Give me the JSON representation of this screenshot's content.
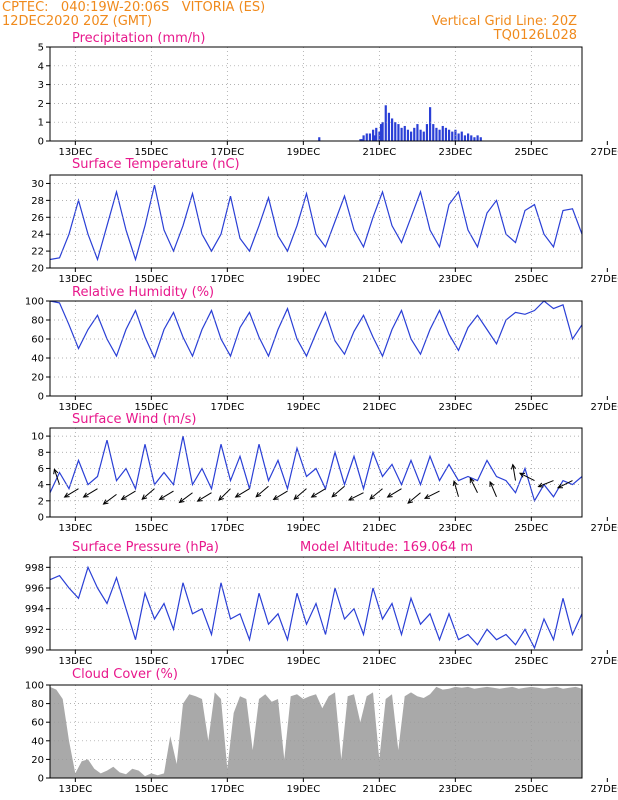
{
  "header": {
    "line1": "CPTEC:   040:19W-20:06S   VITORIA (ES)",
    "line2": "12DEC2020 20Z (GMT)",
    "right1": "Vertical Grid Line: 20Z",
    "right2": "TQ0126L028"
  },
  "x_ticks": [
    "13DEC",
    "15DEC",
    "17DEC",
    "19DEC",
    "21DEC",
    "23DEC",
    "25DEC",
    "27DEC"
  ],
  "colors": {
    "line": "#2a3fd6",
    "bar": "#2a3fd6",
    "cloud": "#a9a9a9",
    "title": "#e8188c",
    "header": "#f08a1c"
  },
  "panels": {
    "precipitation": {
      "title": "Precipitation (mm/h)"
    },
    "temperature": {
      "title": "Surface Temperature (nC)"
    },
    "humidity": {
      "title": "Relative Humidity (%)"
    },
    "wind": {
      "title": "Surface Wind (m/s)"
    },
    "pressure": {
      "title": "Surface Pressure (hPa)",
      "extra": "Model Altitude: 169.064 m"
    },
    "cloud": {
      "title": "Cloud Cover (%)"
    }
  },
  "chart_data": [
    {
      "type": "bar",
      "title": "Precipitation (mm/h)",
      "ylim": [
        0,
        5
      ],
      "yticks": [
        0,
        1,
        2,
        3,
        4,
        5
      ],
      "x_unit": "hours since 12DEC2020 20Z",
      "x": [
        170,
        196,
        197,
        198,
        200,
        202,
        204,
        205,
        206,
        208,
        209,
        210,
        212,
        214,
        216,
        218,
        220,
        222,
        224,
        226,
        228,
        230,
        232,
        234,
        236,
        238,
        240,
        242,
        244,
        246,
        248,
        250,
        252,
        254,
        256,
        258,
        260,
        262,
        264,
        266,
        268,
        270,
        272
      ],
      "values": [
        0.2,
        0.1,
        0.1,
        0.3,
        0.4,
        0.4,
        0.6,
        0.3,
        0.7,
        0.5,
        0.9,
        1.0,
        1.9,
        1.5,
        1.2,
        1.0,
        0.9,
        0.7,
        0.8,
        0.6,
        0.5,
        0.7,
        0.9,
        0.6,
        0.5,
        0.9,
        1.8,
        0.9,
        0.7,
        0.6,
        0.8,
        0.7,
        0.6,
        0.5,
        0.6,
        0.4,
        0.5,
        0.3,
        0.4,
        0.3,
        0.2,
        0.3,
        0.2
      ]
    },
    {
      "type": "line",
      "title": "Surface Temperature (nC)",
      "ylim": [
        20,
        31
      ],
      "yticks": [
        20,
        22,
        24,
        26,
        28,
        30
      ],
      "x_unit": "hours since 12DEC2020 20Z",
      "x": [
        0,
        6,
        12,
        18,
        24,
        30,
        36,
        42,
        48,
        54,
        60,
        66,
        72,
        78,
        84,
        90,
        96,
        102,
        108,
        114,
        120,
        126,
        132,
        138,
        144,
        150,
        156,
        162,
        168,
        174,
        180,
        186,
        192,
        198,
        204,
        210,
        216,
        222,
        228,
        234,
        240,
        246,
        252,
        258,
        264,
        270,
        276,
        282,
        288,
        294,
        300,
        306,
        312,
        318,
        324,
        330,
        336
      ],
      "values": [
        21.0,
        21.2,
        24.0,
        28.0,
        24.0,
        21.0,
        25.0,
        29.0,
        24.5,
        21.0,
        25.0,
        29.8,
        24.5,
        22.0,
        25.0,
        28.8,
        24.0,
        22.0,
        24.0,
        28.5,
        23.5,
        22.0,
        25.0,
        28.3,
        23.8,
        22.0,
        25.0,
        28.8,
        24.0,
        22.5,
        25.5,
        28.5,
        24.5,
        22.5,
        26.0,
        29.0,
        25.0,
        23.0,
        26.0,
        29.0,
        24.5,
        22.5,
        27.5,
        29.0,
        24.5,
        22.5,
        26.5,
        28.0,
        24.0,
        23.0,
        26.8,
        27.5,
        24.0,
        22.5,
        26.8,
        27.0,
        24.0
      ]
    },
    {
      "type": "line",
      "title": "Relative Humidity (%)",
      "ylim": [
        0,
        100
      ],
      "yticks": [
        0,
        20,
        40,
        60,
        80,
        100
      ],
      "x_unit": "hours since 12DEC2020 20Z",
      "x": [
        0,
        6,
        12,
        18,
        24,
        30,
        36,
        42,
        48,
        54,
        60,
        66,
        72,
        78,
        84,
        90,
        96,
        102,
        108,
        114,
        120,
        126,
        132,
        138,
        144,
        150,
        156,
        162,
        168,
        174,
        180,
        186,
        192,
        198,
        204,
        210,
        216,
        222,
        228,
        234,
        240,
        246,
        252,
        258,
        264,
        270,
        276,
        282,
        288,
        294,
        300,
        306,
        312,
        318,
        324,
        330,
        336
      ],
      "values": [
        100,
        98,
        75,
        50,
        70,
        85,
        60,
        42,
        70,
        90,
        62,
        40,
        70,
        88,
        62,
        42,
        70,
        90,
        60,
        42,
        72,
        88,
        62,
        42,
        70,
        92,
        60,
        42,
        66,
        88,
        58,
        44,
        68,
        85,
        62,
        42,
        70,
        90,
        60,
        44,
        70,
        90,
        65,
        48,
        72,
        85,
        70,
        55,
        80,
        88,
        86,
        90,
        100,
        92,
        96,
        60,
        75
      ]
    },
    {
      "type": "line",
      "title": "Surface Wind (m/s)",
      "ylim": [
        0,
        11
      ],
      "yticks": [
        0,
        2,
        4,
        6,
        8,
        10
      ],
      "x_unit": "hours since 12DEC2020 20Z",
      "x": [
        0,
        6,
        12,
        18,
        24,
        30,
        36,
        42,
        48,
        54,
        60,
        66,
        72,
        78,
        84,
        90,
        96,
        102,
        108,
        114,
        120,
        126,
        132,
        138,
        144,
        150,
        156,
        162,
        168,
        174,
        180,
        186,
        192,
        198,
        204,
        210,
        216,
        222,
        228,
        234,
        240,
        246,
        252,
        258,
        264,
        270,
        276,
        282,
        288,
        294,
        300,
        306,
        312,
        318,
        324,
        330,
        336
      ],
      "values": [
        3.0,
        5.5,
        3.5,
        7.0,
        4.0,
        5.0,
        9.5,
        4.5,
        6.0,
        3.5,
        9.0,
        4.0,
        5.5,
        4.0,
        10.0,
        4.0,
        6.0,
        3.5,
        9.0,
        4.5,
        7.5,
        3.5,
        9.0,
        4.5,
        7.0,
        3.5,
        8.5,
        5.0,
        6.0,
        3.5,
        8.0,
        4.0,
        7.5,
        3.5,
        8.0,
        5.0,
        6.5,
        4.0,
        7.0,
        4.0,
        7.5,
        4.5,
        6.5,
        4.5,
        5.0,
        4.5,
        7.0,
        5.0,
        4.5,
        3.0,
        6.0,
        2.0,
        4.0,
        2.5,
        4.5,
        4.0,
        5.0
      ]
    },
    {
      "type": "line",
      "title": "Surface Pressure (hPa)",
      "ylim": [
        990,
        999
      ],
      "yticks": [
        990,
        992,
        994,
        996,
        998
      ],
      "x_unit": "hours since 12DEC2020 20Z",
      "x": [
        0,
        6,
        12,
        18,
        24,
        30,
        36,
        42,
        48,
        54,
        60,
        66,
        72,
        78,
        84,
        90,
        96,
        102,
        108,
        114,
        120,
        126,
        132,
        138,
        144,
        150,
        156,
        162,
        168,
        174,
        180,
        186,
        192,
        198,
        204,
        210,
        216,
        222,
        228,
        234,
        240,
        246,
        252,
        258,
        264,
        270,
        276,
        282,
        288,
        294,
        300,
        306,
        312,
        318,
        324,
        330,
        336
      ],
      "values": [
        996.8,
        997.2,
        996.0,
        995.0,
        998.0,
        996.0,
        994.5,
        997.0,
        994.0,
        991.0,
        995.5,
        993.0,
        994.5,
        992.0,
        996.5,
        993.5,
        994.0,
        991.5,
        996.5,
        993.0,
        993.5,
        991.0,
        995.5,
        992.5,
        993.5,
        991.0,
        995.5,
        992.5,
        994.5,
        991.5,
        996.0,
        993.0,
        994.0,
        991.5,
        996.0,
        993.0,
        994.5,
        991.5,
        995.0,
        992.5,
        993.5,
        991.0,
        993.5,
        991.0,
        991.5,
        990.5,
        992.0,
        991.0,
        991.5,
        990.5,
        992.0,
        990.2,
        993.0,
        991.0,
        995.0,
        991.5,
        993.5
      ]
    },
    {
      "type": "area",
      "title": "Cloud Cover (%)",
      "ylim": [
        0,
        100
      ],
      "yticks": [
        0,
        20,
        40,
        60,
        80,
        100
      ],
      "x_unit": "hours since 12DEC2020 20Z",
      "x": [
        0,
        4,
        8,
        12,
        16,
        20,
        24,
        28,
        32,
        36,
        40,
        44,
        48,
        52,
        56,
        60,
        64,
        68,
        72,
        76,
        80,
        84,
        88,
        92,
        96,
        100,
        104,
        108,
        112,
        116,
        120,
        124,
        128,
        132,
        136,
        140,
        144,
        148,
        152,
        156,
        160,
        164,
        168,
        172,
        176,
        180,
        184,
        188,
        192,
        196,
        200,
        204,
        208,
        212,
        216,
        220,
        224,
        228,
        232,
        236,
        240,
        244,
        248,
        252,
        256,
        260,
        264,
        268,
        272,
        276,
        280,
        284,
        288,
        292,
        296,
        300,
        304,
        308,
        312,
        316,
        320,
        324,
        328,
        332,
        336
      ],
      "values": [
        98,
        95,
        85,
        40,
        5,
        18,
        20,
        10,
        5,
        8,
        12,
        6,
        4,
        10,
        8,
        2,
        5,
        3,
        5,
        45,
        15,
        80,
        90,
        88,
        85,
        40,
        92,
        85,
        10,
        70,
        88,
        85,
        30,
        85,
        90,
        82,
        85,
        20,
        88,
        90,
        85,
        88,
        90,
        75,
        88,
        92,
        20,
        88,
        90,
        60,
        88,
        92,
        20,
        85,
        90,
        30,
        88,
        92,
        88,
        86,
        90,
        98,
        95,
        96,
        98,
        97,
        98,
        96,
        97,
        98,
        97,
        96,
        97,
        98,
        96,
        97,
        98,
        97,
        96,
        97,
        98,
        96,
        97,
        98,
        96
      ]
    },
    {
      "type": "scatter",
      "title": "Surface Wind (m/s)",
      "note": "wind direction arrows",
      "x_unit": "hours since 12DEC2020 20Z",
      "x": [
        6,
        18,
        30,
        42,
        54,
        66,
        78,
        90,
        102,
        114,
        126,
        138,
        150,
        162,
        174,
        186,
        198,
        210,
        222,
        234,
        246,
        258,
        270,
        282,
        294,
        306,
        318,
        330
      ],
      "y": [
        4,
        3.5,
        3.5,
        2.8,
        3.2,
        3.5,
        3.2,
        3.0,
        3.0,
        3.5,
        3.5,
        3.8,
        3.2,
        3.5,
        3.5,
        3.8,
        3.0,
        3.5,
        3.5,
        3.0,
        3.2,
        2.5,
        3.0,
        2.5,
        4.5,
        4.5,
        4.5,
        4.5
      ],
      "u": [
        0.2,
        1.0,
        1.0,
        0.8,
        1.0,
        0.7,
        1.0,
        0.8,
        1.0,
        0.6,
        1.0,
        0.7,
        1.0,
        0.7,
        1.0,
        0.7,
        1.0,
        0.6,
        1.0,
        0.6,
        1.0,
        0.2,
        0.3,
        0.3,
        0.1,
        0.4,
        0.5,
        0.6
      ],
      "v": [
        -0.6,
        0.6,
        0.6,
        0.6,
        0.6,
        0.6,
        0.6,
        0.6,
        0.6,
        0.6,
        0.6,
        0.6,
        0.6,
        0.6,
        0.6,
        0.6,
        0.5,
        0.5,
        0.6,
        0.5,
        0.5,
        -0.7,
        -0.6,
        -0.7,
        -0.6,
        -0.2,
        0.2,
        0.3
      ]
    }
  ]
}
